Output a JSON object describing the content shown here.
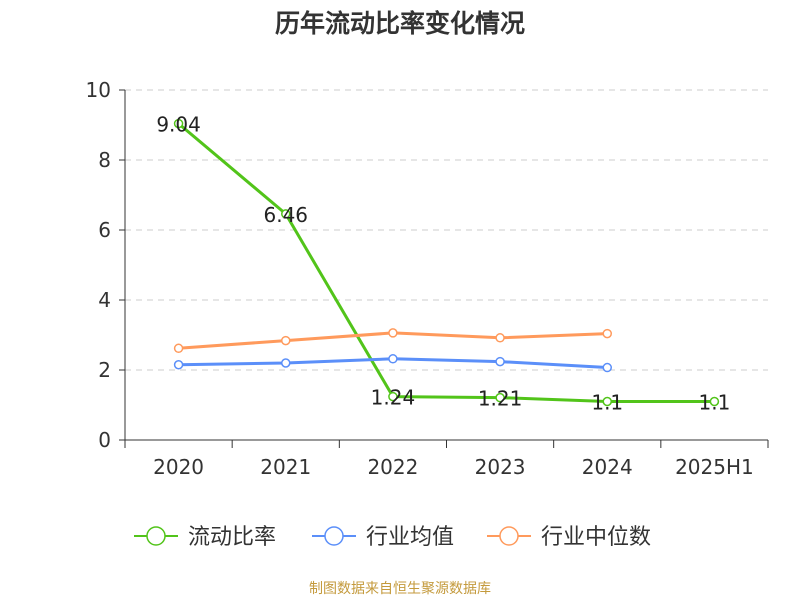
{
  "chart_data": {
    "type": "line",
    "title": "历年流动比率变化情况",
    "xlabel": "",
    "ylabel": "",
    "categories": [
      "2020",
      "2021",
      "2022",
      "2023",
      "2024",
      "2025H1"
    ],
    "ylim": [
      0,
      10
    ],
    "yticks": [
      0,
      2,
      4,
      6,
      8,
      10
    ],
    "grid": true,
    "legend_position": "bottom",
    "series": [
      {
        "name": "流动比率",
        "color": "#52c41a",
        "values": [
          9.04,
          6.46,
          1.24,
          1.21,
          1.1,
          1.1
        ],
        "labels": [
          "9.04",
          "6.46",
          "1.24",
          "1.21",
          "1.1",
          "1.1"
        ]
      },
      {
        "name": "行业均值",
        "color": "#5b8ff9",
        "values": [
          2.15,
          2.2,
          2.32,
          2.24,
          2.07,
          null
        ],
        "labels": []
      },
      {
        "name": "行业中位数",
        "color": "#ff9a5c",
        "values": [
          2.62,
          2.84,
          3.06,
          2.92,
          3.04,
          null
        ],
        "labels": []
      }
    ]
  },
  "source": {
    "text": "制图数据来自恒生聚源数据库",
    "color": "#c49a3c"
  }
}
